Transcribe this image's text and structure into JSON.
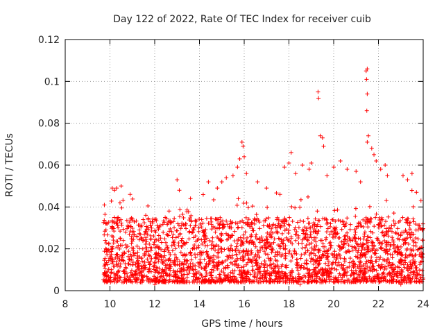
{
  "chart_data": {
    "type": "scatter",
    "title": "Day 122 of 2022, Rate Of TEC Index for receiver cuib",
    "xlabel": "GPS time / hours",
    "ylabel": "ROTI / TECUs",
    "xlim": [
      8,
      24
    ],
    "ylim": [
      0,
      0.12
    ],
    "xticks": [
      8,
      10,
      12,
      14,
      16,
      18,
      20,
      22,
      24
    ],
    "yticks": [
      0,
      0.02,
      0.04,
      0.06,
      0.08,
      0.1,
      0.12
    ],
    "xtick_labels": [
      "8",
      "10",
      "12",
      "14",
      "16",
      "18",
      "20",
      "22",
      "24"
    ],
    "ytick_labels": [
      "0",
      "0.02",
      "0.04",
      "0.06",
      "0.08",
      "0.1",
      "0.12"
    ],
    "grid": true,
    "marker": "+",
    "color": "#ff0000",
    "series": [
      {
        "name": "ROTI",
        "data_range_x": [
          9.7,
          24.0
        ],
        "band_typical": [
          0.004,
          0.035
        ],
        "points": [
          [
            9.75,
            0.041
          ],
          [
            10.1,
            0.049
          ],
          [
            10.2,
            0.048
          ],
          [
            10.3,
            0.049
          ],
          [
            10.5,
            0.05
          ],
          [
            10.9,
            0.046
          ],
          [
            11.6,
            0.036
          ],
          [
            13.0,
            0.053
          ],
          [
            13.1,
            0.048
          ],
          [
            13.6,
            0.044
          ],
          [
            14.4,
            0.052
          ],
          [
            14.8,
            0.049
          ],
          [
            15.0,
            0.052
          ],
          [
            15.2,
            0.054
          ],
          [
            15.5,
            0.055
          ],
          [
            15.7,
            0.059
          ],
          [
            15.8,
            0.063
          ],
          [
            15.9,
            0.071
          ],
          [
            15.95,
            0.069
          ],
          [
            16.0,
            0.064
          ],
          [
            16.1,
            0.056
          ],
          [
            16.6,
            0.052
          ],
          [
            17.0,
            0.049
          ],
          [
            17.6,
            0.046
          ],
          [
            17.8,
            0.059
          ],
          [
            18.0,
            0.061
          ],
          [
            18.1,
            0.066
          ],
          [
            18.3,
            0.056
          ],
          [
            18.6,
            0.06
          ],
          [
            18.9,
            0.058
          ],
          [
            19.0,
            0.061
          ],
          [
            19.3,
            0.095
          ],
          [
            19.32,
            0.092
          ],
          [
            19.4,
            0.074
          ],
          [
            19.5,
            0.073
          ],
          [
            19.55,
            0.069
          ],
          [
            19.7,
            0.055
          ],
          [
            20.0,
            0.059
          ],
          [
            20.3,
            0.062
          ],
          [
            20.6,
            0.058
          ],
          [
            21.0,
            0.057
          ],
          [
            21.2,
            0.052
          ],
          [
            21.45,
            0.105
          ],
          [
            21.5,
            0.106
          ],
          [
            21.47,
            0.101
          ],
          [
            21.5,
            0.094
          ],
          [
            21.48,
            0.086
          ],
          [
            21.55,
            0.074
          ],
          [
            21.5,
            0.071
          ],
          [
            21.7,
            0.068
          ],
          [
            21.8,
            0.065
          ],
          [
            21.9,
            0.062
          ],
          [
            22.1,
            0.058
          ],
          [
            22.3,
            0.06
          ],
          [
            22.4,
            0.055
          ],
          [
            23.1,
            0.055
          ],
          [
            23.3,
            0.053
          ],
          [
            23.5,
            0.056
          ],
          [
            23.7,
            0.047
          ],
          [
            23.9,
            0.043
          ],
          [
            9.8,
            0.005
          ],
          [
            12.0,
            0.003
          ],
          [
            15.0,
            0.004
          ],
          [
            18.5,
            0.003
          ],
          [
            20.5,
            0.004
          ],
          [
            23.0,
            0.003
          ],
          [
            24.0,
            0.006
          ]
        ]
      }
    ]
  }
}
